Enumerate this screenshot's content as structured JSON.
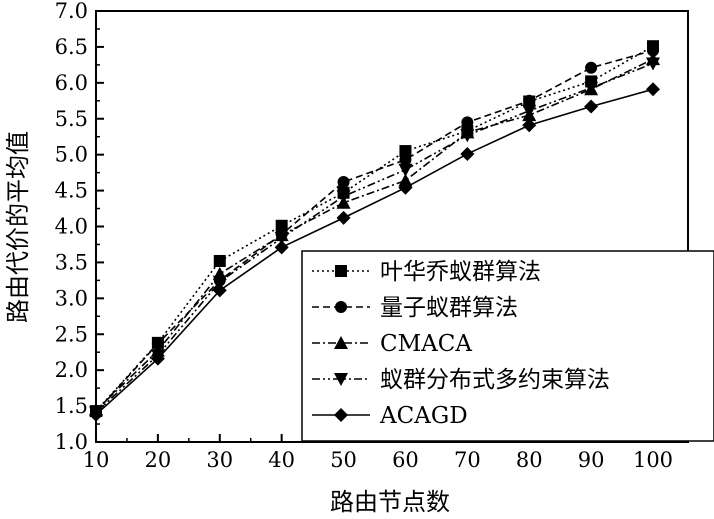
{
  "chart_data": {
    "type": "line",
    "title": "",
    "xlabel": "路由节点数",
    "ylabel": "路由代价的平均值",
    "xlim": [
      10,
      100
    ],
    "ylim": [
      1.0,
      7.0
    ],
    "x": [
      10,
      20,
      30,
      40,
      50,
      60,
      70,
      80,
      90,
      100
    ],
    "x_ticks": [
      "10",
      "20",
      "30",
      "40",
      "50",
      "60",
      "70",
      "80",
      "90",
      "100"
    ],
    "y_ticks": [
      "1.0",
      "1.5",
      "2.0",
      "2.5",
      "3.0",
      "3.5",
      "4.0",
      "4.5",
      "5.0",
      "5.5",
      "6.0",
      "6.5",
      "7.0"
    ],
    "grid": false,
    "legend_position": "bottom-right",
    "series": [
      {
        "name": "叶华乔蚁群算法",
        "marker": "square",
        "dash": "dotted",
        "values": [
          1.43,
          2.38,
          3.52,
          4.01,
          4.47,
          5.05,
          5.33,
          5.74,
          6.02,
          6.51
        ]
      },
      {
        "name": "量子蚁群算法",
        "marker": "circle",
        "dash": "dashed",
        "values": [
          1.42,
          2.37,
          3.25,
          3.89,
          4.62,
          4.93,
          5.45,
          5.75,
          6.21,
          6.45
        ]
      },
      {
        "name": "CMACA",
        "marker": "triangle-up",
        "dash": "dashdot",
        "values": [
          1.44,
          2.27,
          3.34,
          3.88,
          4.33,
          4.64,
          5.31,
          5.55,
          5.91,
          6.33
        ]
      },
      {
        "name": "蚁群分布式多约束算法",
        "marker": "triangle-down",
        "dash": "dashdotdot",
        "values": [
          1.41,
          2.21,
          3.23,
          3.84,
          4.42,
          4.79,
          5.27,
          5.61,
          5.93,
          6.27
        ]
      },
      {
        "name": "ACAGD",
        "marker": "diamond",
        "dash": "solid",
        "values": [
          1.38,
          2.16,
          3.11,
          3.71,
          4.12,
          4.54,
          5.01,
          5.41,
          5.67,
          5.91
        ]
      }
    ]
  }
}
